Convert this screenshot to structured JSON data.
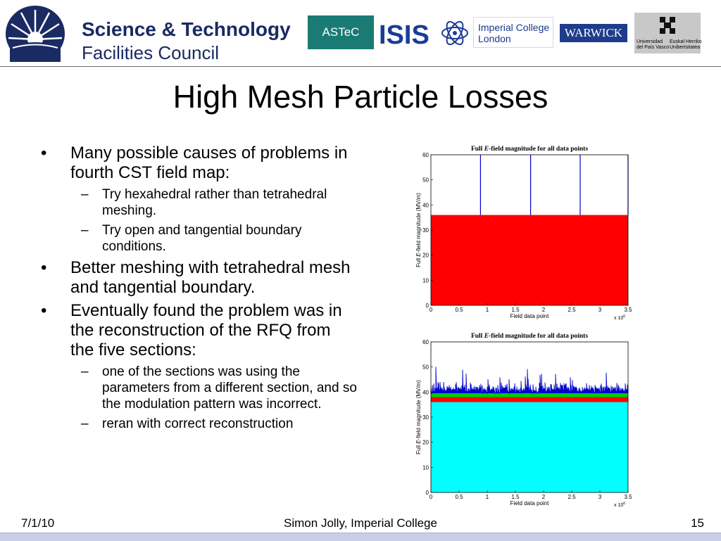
{
  "header": {
    "logos": {
      "stfc_line1": "Science & Technology",
      "stfc_line2": "Facilities Council",
      "astec": "ASTeC",
      "isis": "ISIS",
      "imperial_line1": "Imperial College",
      "imperial_line2": "London",
      "warwick": "WARWICK",
      "upv_left_line1": "Universidad",
      "upv_left_line2": "del País Vasco",
      "upv_right_line1": "Euskal Herriko",
      "upv_right_line2": "Unibertsitatea"
    }
  },
  "title": "High Mesh Particle Losses",
  "bullets": [
    {
      "text": "Many possible causes of problems in fourth CST field map:",
      "sub": [
        "Try hexahedral rather than tetrahedral meshing.",
        "Try open and tangential boundary conditions."
      ]
    },
    {
      "text": "Better meshing with tetrahedral mesh and tangential boundary.",
      "sub": []
    },
    {
      "text": "Eventually found the problem was in the reconstruction of the RFQ from the five sections:",
      "sub": [
        "one of the sections was using the parameters from a different section, and so the modulation pattern was incorrect.",
        "reran with correct reconstruction"
      ]
    }
  ],
  "chart_data": [
    {
      "type": "area",
      "title_prefix": "Full ",
      "title_italic": "E",
      "title_suffix": "-field magnitude for all data points",
      "xlabel": "Field data point",
      "ylabel_prefix": "Full ",
      "ylabel_italic": "E",
      "ylabel_suffix": "-field magnitude (MV/m)",
      "x_multiplier_label": "x 10",
      "x_multiplier_exp": "6",
      "xlim": [
        0,
        3.5
      ],
      "ylim": [
        0,
        60
      ],
      "xticks": [
        0,
        0.5,
        1,
        1.5,
        2,
        2.5,
        3,
        3.5
      ],
      "yticks": [
        0,
        10,
        20,
        30,
        40,
        50,
        60
      ],
      "tick_labels_x": [
        "0",
        "0.5",
        "1",
        "1.5",
        "2",
        "2.5",
        "3",
        "3.5"
      ],
      "tick_labels_y": [
        "0",
        "10",
        "20",
        "30",
        "40",
        "50",
        "60"
      ],
      "x_max_data": 3.5,
      "fill_level": 36,
      "fill_color": "#ff0000",
      "spikes": [
        {
          "x": 0.88,
          "y": 60
        },
        {
          "x": 1.77,
          "y": 60
        },
        {
          "x": 2.65,
          "y": 60
        },
        {
          "x": 3.5,
          "y": 60
        }
      ],
      "spike_color": "#0000cc"
    },
    {
      "type": "area",
      "title_prefix": "Full ",
      "title_italic": "E",
      "title_suffix": "-field magnitude for all data points",
      "xlabel": "Field data point",
      "ylabel_prefix": "Full ",
      "ylabel_italic": "E",
      "ylabel_suffix": "-field magnitude (MV/m)",
      "x_multiplier_label": "x 10",
      "x_multiplier_exp": "6",
      "xlim": [
        0,
        3.5
      ],
      "ylim": [
        0,
        60
      ],
      "xticks": [
        0,
        0.5,
        1,
        1.5,
        2,
        2.5,
        3,
        3.5
      ],
      "yticks": [
        0,
        10,
        20,
        30,
        40,
        50,
        60
      ],
      "tick_labels_x": [
        "0",
        "0.5",
        "1",
        "1.5",
        "2",
        "2.5",
        "3",
        "3.5"
      ],
      "tick_labels_y": [
        "0",
        "10",
        "20",
        "30",
        "40",
        "50",
        "60"
      ],
      "x_max_data": 3.5,
      "layers": [
        {
          "from": 0,
          "to": 36,
          "color": "#00ffff"
        },
        {
          "from": 36,
          "to": 38,
          "color": "#ff0000"
        },
        {
          "from": 38,
          "to": 39.5,
          "color": "#00cc00"
        }
      ],
      "noise_base": 40,
      "noise_peak_max": 49,
      "noise_color": "#0000cc"
    }
  ],
  "footer": {
    "date": "7/1/10",
    "author": "Simon Jolly, Imperial College",
    "page": "15"
  }
}
